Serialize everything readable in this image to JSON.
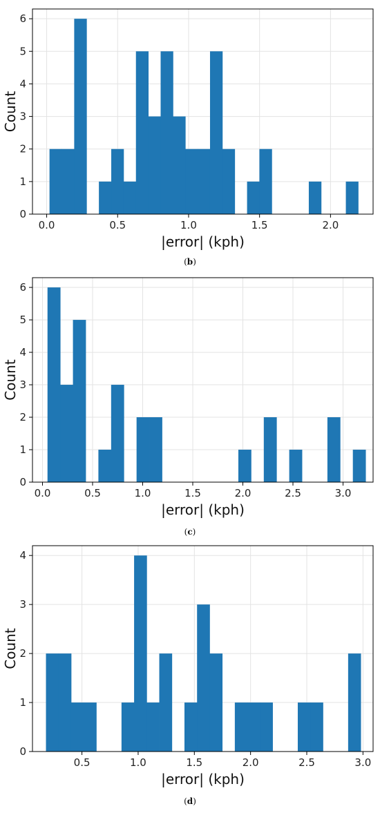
{
  "chart_data": [
    {
      "type": "bar",
      "panel": "(b)",
      "caption_letter": "b",
      "xlabel": "|error| (kph)",
      "ylabel": "Count",
      "xlim": [
        -0.1,
        2.3
      ],
      "ylim": [
        0,
        6.3
      ],
      "xticks": [
        0.0,
        0.5,
        1.0,
        1.5,
        2.0
      ],
      "xtick_labels": [
        "0.0",
        "0.5",
        "1.0",
        "1.5",
        "2.0"
      ],
      "yticks": [
        0,
        1,
        2,
        3,
        4,
        5,
        6
      ],
      "ytick_labels": [
        "0",
        "1",
        "2",
        "3",
        "4",
        "5",
        "6"
      ],
      "grid": true,
      "color": "#1f77b4",
      "bin_edges": [
        0.02,
        0.107,
        0.194,
        0.281,
        0.368,
        0.455,
        0.542,
        0.629,
        0.716,
        0.803,
        0.89,
        0.977,
        1.064,
        1.151,
        1.238,
        1.325,
        1.412,
        1.499,
        1.586,
        1.673,
        1.76,
        1.847,
        1.934,
        2.021,
        2.108,
        2.195
      ],
      "counts": [
        2,
        2,
        6,
        0,
        1,
        2,
        1,
        5,
        3,
        5,
        3,
        2,
        2,
        5,
        2,
        0,
        1,
        2,
        0,
        0,
        0,
        1,
        0,
        0,
        1
      ]
    },
    {
      "type": "bar",
      "panel": "(c)",
      "caption_letter": "c",
      "xlabel": "|error| (kph)",
      "ylabel": "Count",
      "xlim": [
        -0.1,
        3.3
      ],
      "ylim": [
        0,
        6.3
      ],
      "xticks": [
        0.0,
        0.5,
        1.0,
        1.5,
        2.0,
        2.5,
        3.0
      ],
      "xtick_labels": [
        "0.0",
        "0.5",
        "1.0",
        "1.5",
        "2.0",
        "2.5",
        "3.0"
      ],
      "yticks": [
        0,
        1,
        2,
        3,
        4,
        5,
        6
      ],
      "ytick_labels": [
        "0",
        "1",
        "2",
        "3",
        "4",
        "5",
        "6"
      ],
      "grid": true,
      "color": "#1f77b4",
      "bin_edges": [
        0.05,
        0.177,
        0.304,
        0.431,
        0.558,
        0.685,
        0.812,
        0.939,
        1.066,
        1.193,
        1.32,
        1.447,
        1.574,
        1.701,
        1.828,
        1.955,
        2.082,
        2.209,
        2.336,
        2.463,
        2.59,
        2.717,
        2.844,
        2.971,
        3.098,
        3.225
      ],
      "counts": [
        6,
        3,
        5,
        0,
        1,
        3,
        0,
        2,
        2,
        0,
        0,
        0,
        0,
        0,
        0,
        1,
        0,
        2,
        0,
        1,
        0,
        0,
        2,
        0,
        1
      ]
    },
    {
      "type": "bar",
      "panel": "(d)",
      "caption_letter": "d",
      "xlabel": "|error| (kph)",
      "ylabel": "Count",
      "xlim": [
        0.06,
        3.09
      ],
      "ylim": [
        0,
        4.2
      ],
      "xticks": [
        0.5,
        1.0,
        1.5,
        2.0,
        2.5,
        3.0
      ],
      "xtick_labels": [
        "0.5",
        "1.0",
        "1.5",
        "2.0",
        "2.5",
        "3.0"
      ],
      "yticks": [
        0,
        1,
        2,
        3,
        4
      ],
      "ytick_labels": [
        "0",
        "1",
        "2",
        "3",
        "4"
      ],
      "grid": true,
      "color": "#1f77b4",
      "bin_edges": [
        0.18,
        0.292,
        0.404,
        0.516,
        0.628,
        0.74,
        0.852,
        0.964,
        1.076,
        1.188,
        1.3,
        1.412,
        1.524,
        1.636,
        1.748,
        1.86,
        1.972,
        2.084,
        2.196,
        2.308,
        2.42,
        2.532,
        2.644,
        2.756,
        2.868,
        2.98
      ],
      "counts": [
        2,
        2,
        1,
        1,
        0,
        0,
        1,
        4,
        1,
        2,
        0,
        1,
        3,
        2,
        0,
        1,
        1,
        1,
        0,
        0,
        1,
        1,
        0,
        0,
        2
      ]
    }
  ]
}
